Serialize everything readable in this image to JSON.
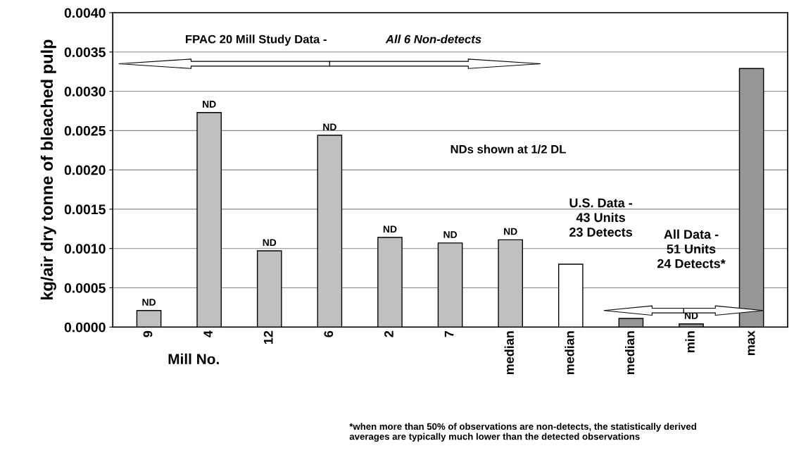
{
  "chart_data": {
    "type": "bar",
    "xlabel": "Mill No.",
    "ylabel": "kg/air dry tonne of bleached pulp",
    "categories": [
      "9",
      "4",
      "12",
      "6",
      "2",
      "7",
      "median",
      "median",
      "median",
      "min",
      "max"
    ],
    "values": [
      0.00021,
      0.00273,
      0.00097,
      0.00244,
      0.00114,
      0.00107,
      0.00111,
      0.0008,
      0.00011,
      4e-05,
      0.00329
    ],
    "colors": [
      "#c0c0c0",
      "#c0c0c0",
      "#c0c0c0",
      "#c0c0c0",
      "#c0c0c0",
      "#c0c0c0",
      "#c0c0c0",
      "#ffffff",
      "#969696",
      "#969696",
      "#969696"
    ],
    "value_labels": [
      "ND",
      "ND",
      "ND",
      "ND",
      "ND",
      "ND",
      "ND",
      null,
      null,
      "ND",
      null
    ],
    "ylim": [
      0,
      0.004
    ],
    "yticks": [
      {
        "value": 0,
        "label": "0.0000"
      },
      {
        "value": 0.0005,
        "label": "0.0005"
      },
      {
        "value": 0.001,
        "label": "0.0010"
      },
      {
        "value": 0.0015,
        "label": "0.0015"
      },
      {
        "value": 0.002,
        "label": "0.0020"
      },
      {
        "value": 0.0025,
        "label": "0.0025"
      },
      {
        "value": 0.003,
        "label": "0.0030"
      },
      {
        "value": 0.0035,
        "label": "0.0035"
      },
      {
        "value": 0.004,
        "label": "0.0040"
      }
    ],
    "grid": "y",
    "annotations": [
      "FPAC 20 Mill Study Data - ",
      "All 6 Non-detects",
      "NDs shown at 1/2 DL",
      "U.S. Data -\n43 Units\n23 Detects",
      "All Data -\n51 Units\n24 Detects*",
      "*when more than 50% of observations are non-detects, the statistically derived\naverages are typically much lower than the detected observations"
    ]
  }
}
